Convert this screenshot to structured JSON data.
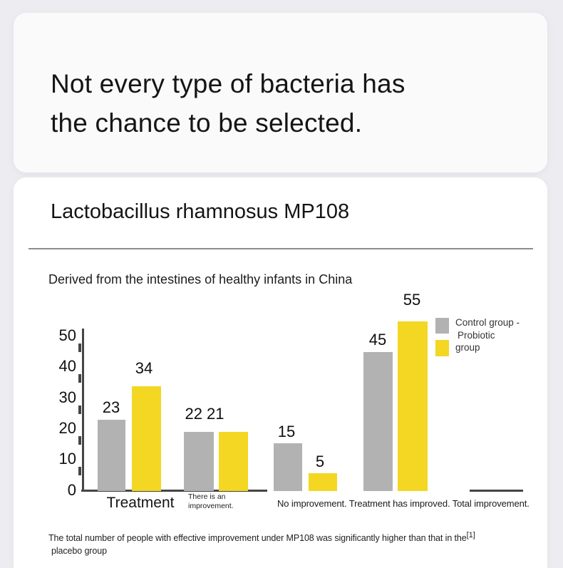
{
  "hero": {
    "title_line1": "Not every type of bacteria has",
    "title_line2": "the chance to be selected."
  },
  "section": {
    "heading": "Lactobacillus rhamnosus MP108",
    "subheading": "Derived from the intestines of healthy infants in China"
  },
  "chart_data": {
    "type": "bar",
    "title": "Derived from the intestines of healthy infants in China",
    "categories": [
      "Treatment",
      "There is an improvement.",
      "No improvement.",
      "Total improvement."
    ],
    "series": [
      {
        "name": "Control group",
        "color": "#b2b2b2",
        "values": [
          23,
          22,
          15,
          45
        ]
      },
      {
        "name": "Probiotic group",
        "color": "#f3d723",
        "values": [
          34,
          21,
          5,
          55
        ]
      }
    ],
    "xlabel": "",
    "ylabel": "",
    "ylim": [
      0,
      50
    ],
    "yticks": [
      0,
      10,
      20,
      30,
      40,
      50
    ],
    "grid": false,
    "legend_position": "right"
  },
  "chart": {
    "yticks": [
      "50",
      "40",
      "30",
      "20",
      "10",
      "0"
    ],
    "bar_labels": {
      "g1_control": "23",
      "g1_probiotic": "34",
      "g2_combined": "22 21",
      "g3_control": "15",
      "g3_probiotic": "5",
      "g4_control": "45",
      "g4_probiotic": "55"
    },
    "x_labels": {
      "group1": "Treatment",
      "group2_line1": "There is an",
      "group2_line2": "improvement.",
      "groups3_4": "No improvement. Treatment has improved. Total improvement."
    },
    "legend": {
      "line1": "Control group -",
      "line2": "Probiotic",
      "line3": "group"
    }
  },
  "footnote": {
    "line1": "The total number of people with effective improvement under MP108 was significantly higher than that in the",
    "citation": "[1]",
    "line2": "placebo group"
  },
  "colors": {
    "control": "#b2b2b2",
    "probiotic": "#f3d723",
    "background": "#ededf1"
  }
}
